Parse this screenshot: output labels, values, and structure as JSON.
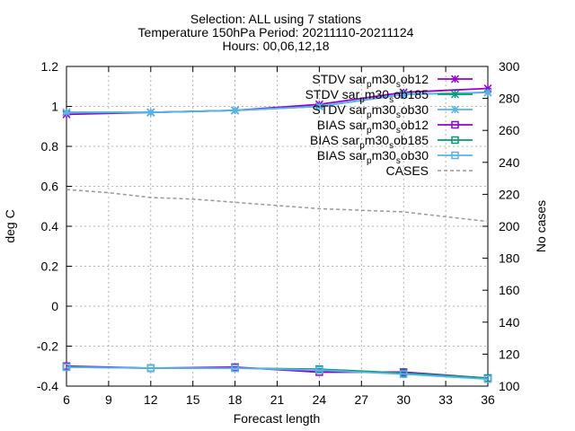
{
  "chart_data": {
    "type": "line",
    "title_lines": [
      "Selection: ALL using     7 stations",
      "Temperature 150hPa   Period: 20211110-20211124",
      "Hours: 00,06,12,18"
    ],
    "xlabel": "Forecast length",
    "ylabel": "deg C",
    "y2label": "No cases",
    "xlim": [
      6,
      36
    ],
    "ylim": [
      -0.4,
      1.2
    ],
    "y2lim": [
      100,
      300
    ],
    "xticks": [
      6,
      9,
      12,
      15,
      18,
      21,
      24,
      27,
      30,
      33,
      36
    ],
    "yticks": [
      -0.4,
      -0.2,
      0,
      0.2,
      0.4,
      0.6,
      0.8,
      1,
      1.2
    ],
    "ytick_labels": [
      "-0.4",
      "-0.2",
      "0",
      "0.2",
      "0.4",
      "0.6",
      "0.8",
      "1",
      "1.2"
    ],
    "y2ticks": [
      100,
      120,
      140,
      160,
      180,
      200,
      220,
      240,
      260,
      280,
      300
    ],
    "grid": true,
    "legend_position": "top-right",
    "x": [
      6,
      12,
      18,
      24,
      30,
      36
    ],
    "series": [
      {
        "name": "STDV sar_p m30_s ob12",
        "legend_parts": [
          "STDV sar",
          "p",
          "m30",
          "s",
          "ob12"
        ],
        "values": [
          0.96,
          0.97,
          0.98,
          1.01,
          1.07,
          1.09
        ],
        "color": "#9400d3",
        "marker": "star",
        "axis": "y"
      },
      {
        "name": "STDV sar_p m30_s ob185",
        "legend_parts": [
          "STDV sar",
          "p",
          "m30",
          "s",
          "ob185"
        ],
        "values": [
          0.97,
          0.97,
          0.98,
          1.0,
          1.06,
          1.07
        ],
        "color": "#009e73",
        "marker": "star",
        "axis": "y"
      },
      {
        "name": "STDV sar_p m30_s ob30",
        "legend_parts": [
          "STDV sar",
          "p",
          "m30",
          "s",
          "ob30"
        ],
        "values": [
          0.97,
          0.97,
          0.98,
          1.0,
          1.06,
          1.07
        ],
        "color": "#56b4e9",
        "marker": "star",
        "axis": "y"
      },
      {
        "name": "BIAS sar_p m30_s ob12",
        "legend_parts": [
          "BIAS sar",
          "p",
          "m30",
          "s",
          "ob12"
        ],
        "values": [
          -0.3,
          -0.31,
          -0.305,
          -0.33,
          -0.33,
          -0.36
        ],
        "color": "#9400d3",
        "marker": "square",
        "axis": "y"
      },
      {
        "name": "BIAS sar_p m30_s ob185",
        "legend_parts": [
          "BIAS sar",
          "p",
          "m30",
          "s",
          "ob185"
        ],
        "values": [
          -0.305,
          -0.31,
          -0.31,
          -0.315,
          -0.335,
          -0.36
        ],
        "color": "#009e73",
        "marker": "square",
        "axis": "y"
      },
      {
        "name": "BIAS sar_p m30_s ob30",
        "legend_parts": [
          "BIAS sar",
          "p",
          "m30",
          "s",
          "ob30"
        ],
        "values": [
          -0.305,
          -0.31,
          -0.31,
          -0.32,
          -0.34,
          -0.365
        ],
        "color": "#56b4e9",
        "marker": "square",
        "axis": "y"
      }
    ],
    "cases": {
      "name": "CASES",
      "x": [
        6,
        9,
        12,
        15,
        18,
        21,
        24,
        27,
        30,
        33,
        36
      ],
      "values": [
        223,
        221,
        218,
        217,
        215,
        213,
        211,
        210,
        209,
        206,
        203
      ],
      "color": "#999999",
      "style": "dashed",
      "axis": "y2"
    }
  }
}
